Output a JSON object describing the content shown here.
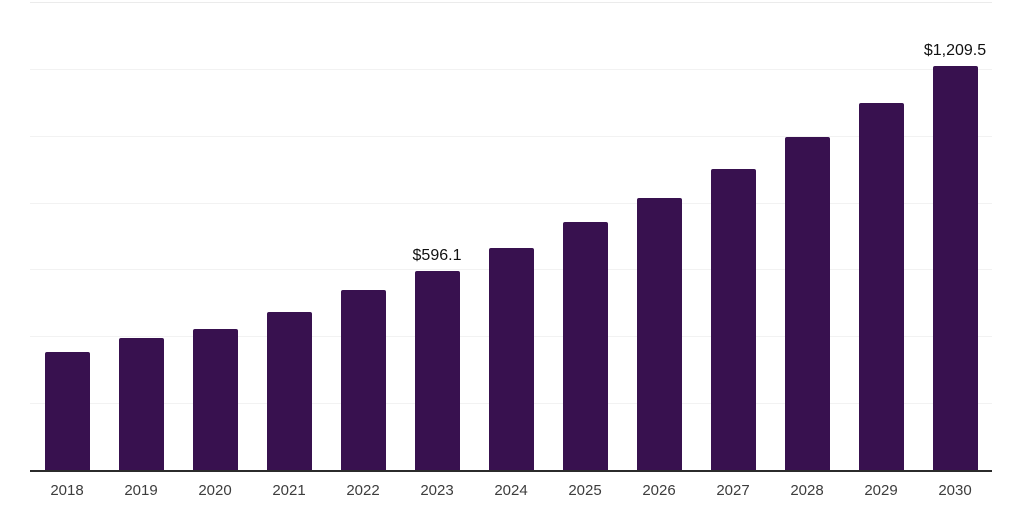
{
  "colors": {
    "background": "#ffffff",
    "bar": "#38114F",
    "gridline": "#f2f2f2",
    "axis_line": "#2b2b2b",
    "tick_label_color": "#3d3d3d",
    "data_label_color": "#111111"
  },
  "chart_data": {
    "type": "bar",
    "title": "",
    "xlabel": "",
    "ylabel": "",
    "categories": [
      "2018",
      "2019",
      "2020",
      "2021",
      "2022",
      "2023",
      "2024",
      "2025",
      "2026",
      "2027",
      "2028",
      "2029",
      "2030"
    ],
    "values": [
      354,
      394,
      421,
      473.5,
      538.5,
      596.1,
      665,
      741,
      813,
      900,
      995,
      1099,
      1209.5
    ],
    "data_labels": [
      {
        "category": "2023",
        "text": "$596.1"
      },
      {
        "category": "2030",
        "text": "$1,209.5"
      }
    ],
    "ylim": [
      0,
      1400
    ],
    "grid_step": 200,
    "grid": "horizontal gridlines only, no y-axis tick labels",
    "legend": "none",
    "currency_prefix": "$"
  }
}
